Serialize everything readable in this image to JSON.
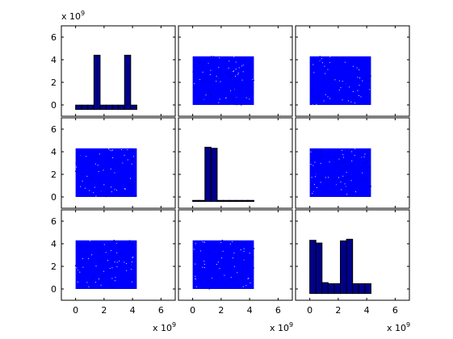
{
  "chart_data": {
    "type": "scatter-matrix",
    "title": "",
    "grid": false,
    "legend": "none",
    "axis_multiplier_base": "x 10",
    "axis_multiplier_exp": "9",
    "xlim": [
      -1,
      7
    ],
    "ylim": [
      -1,
      7
    ],
    "tick_values": [
      0,
      2,
      4,
      6
    ],
    "tick_labels": [
      "0",
      "2",
      "4",
      "6"
    ],
    "colors": {
      "scatter": "#0000ff",
      "hist_fill": "#00008b",
      "hist_edge": "#000000",
      "axes": "#000000",
      "background": "#ffffff"
    },
    "histograms": [
      {
        "diag": 0,
        "bin_edges": [
          0,
          0.43,
          0.86,
          1.29,
          1.72,
          2.15,
          2.58,
          3.01,
          3.44,
          3.87,
          4.3
        ],
        "heights": [
          0.08,
          0.08,
          0.08,
          1.0,
          0.08,
          0.08,
          0.08,
          0.08,
          1.0,
          0.08
        ]
      },
      {
        "diag": 1,
        "bin_edges": [
          0,
          0.43,
          0.86,
          1.29,
          1.72,
          2.15,
          2.58,
          3.01,
          3.44,
          3.87,
          4.3
        ],
        "heights": [
          0.02,
          0.02,
          1.0,
          0.98,
          0.02,
          0.02,
          0.02,
          0.02,
          0.02,
          0.02
        ]
      },
      {
        "diag": 2,
        "bin_edges": [
          0,
          0.43,
          0.86,
          1.29,
          1.72,
          2.15,
          2.58,
          3.01,
          3.44,
          3.87,
          4.3
        ],
        "heights": [
          0.98,
          0.93,
          0.2,
          0.18,
          0.18,
          0.97,
          1.0,
          0.18,
          0.18,
          0.18
        ]
      }
    ],
    "scatter": {
      "x_range": [
        0,
        4.3
      ],
      "y_range": [
        0,
        4.3
      ],
      "points_per_panel": 1600
    }
  }
}
